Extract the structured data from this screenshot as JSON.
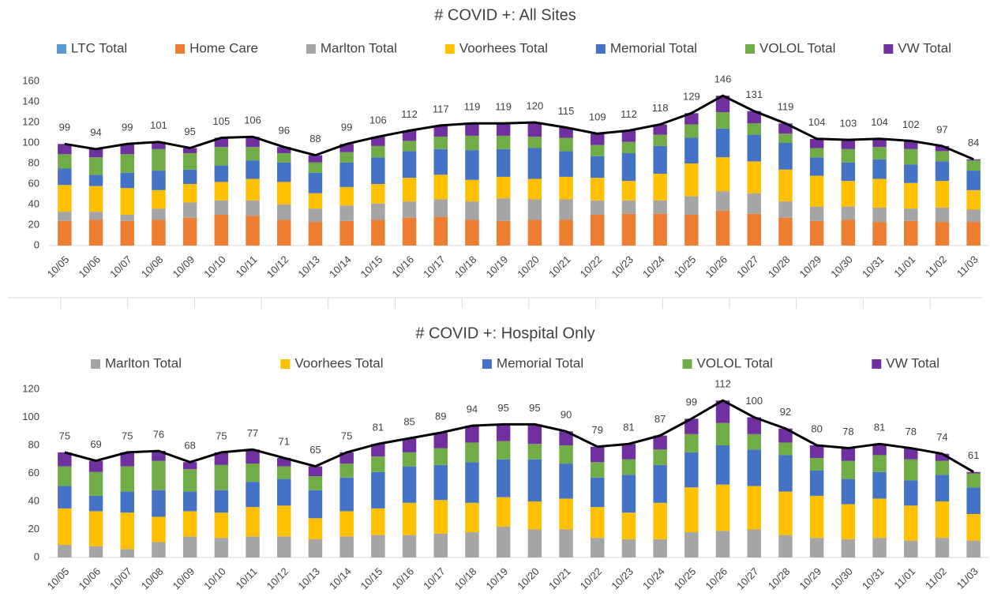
{
  "chart_data": [
    {
      "type": "bar",
      "stacked": true,
      "title": "# COVID +: All Sites",
      "categories": [
        "10/05",
        "10/06",
        "10/07",
        "10/08",
        "10/09",
        "10/10",
        "10/11",
        "10/12",
        "10/13",
        "10/14",
        "10/15",
        "10/16",
        "10/17",
        "10/18",
        "10/19",
        "10/20",
        "10/21",
        "10/22",
        "10/23",
        "10/24",
        "10/25",
        "10/26",
        "10/27",
        "10/28",
        "10/29",
        "10/30",
        "10/31",
        "11/01",
        "11/02",
        "11/03"
      ],
      "series": [
        {
          "name": "LTC Total",
          "color": "#5b9bd5",
          "values": [
            0,
            0,
            0,
            0,
            0,
            0,
            0,
            0,
            0,
            0,
            0,
            0,
            0,
            0,
            0,
            0,
            0,
            0,
            0,
            0,
            0,
            0,
            0,
            0,
            0,
            0,
            0,
            0,
            0,
            0
          ]
        },
        {
          "name": "Home Care",
          "color": "#ed7d31",
          "values": [
            24,
            25,
            24,
            25,
            27,
            30,
            29,
            25,
            23,
            24,
            25,
            27,
            28,
            25,
            24,
            25,
            25,
            30,
            31,
            31,
            30,
            34,
            31,
            27,
            24,
            25,
            23,
            24,
            23,
            23
          ]
        },
        {
          "name": "Marlton Total",
          "color": "#a5a5a5",
          "values": [
            9,
            8,
            6,
            11,
            15,
            14,
            15,
            15,
            13,
            15,
            16,
            16,
            17,
            18,
            22,
            20,
            20,
            14,
            13,
            13,
            18,
            19,
            20,
            16,
            14,
            13,
            14,
            12,
            14,
            12
          ]
        },
        {
          "name": "Voorhees Total",
          "color": "#ffc000",
          "values": [
            26,
            25,
            26,
            18,
            18,
            18,
            21,
            22,
            15,
            18,
            19,
            23,
            24,
            21,
            21,
            20,
            22,
            22,
            19,
            26,
            32,
            33,
            31,
            31,
            30,
            25,
            28,
            25,
            26,
            19
          ]
        },
        {
          "name": "Memorial Total",
          "color": "#4472c4",
          "values": [
            16,
            11,
            15,
            19,
            14,
            16,
            18,
            19,
            20,
            24,
            26,
            26,
            25,
            29,
            27,
            30,
            25,
            21,
            27,
            27,
            25,
            28,
            26,
            26,
            18,
            18,
            19,
            18,
            19,
            19
          ]
        },
        {
          "name": "VOLOL Total",
          "color": "#70ad47",
          "values": [
            14,
            17,
            18,
            21,
            16,
            18,
            13,
            9,
            10,
            10,
            11,
            10,
            12,
            14,
            13,
            11,
            13,
            11,
            11,
            11,
            13,
            16,
            11,
            9,
            9,
            13,
            12,
            15,
            10,
            10
          ]
        },
        {
          "name": "VW Total",
          "color": "#7030a0",
          "values": [
            10,
            8,
            10,
            7,
            5,
            9,
            10,
            6,
            7,
            8,
            9,
            10,
            11,
            12,
            12,
            14,
            10,
            11,
            11,
            10,
            11,
            16,
            12,
            10,
            9,
            9,
            8,
            8,
            5,
            1
          ]
        }
      ],
      "totals": [
        99,
        94,
        99,
        101,
        95,
        105,
        106,
        96,
        88,
        99,
        106,
        112,
        117,
        119,
        119,
        120,
        115,
        109,
        112,
        118,
        129,
        146,
        131,
        119,
        104,
        103,
        104,
        102,
        97,
        84
      ],
      "line_color": "#000000",
      "ylim": [
        0,
        160
      ],
      "yticks": [
        0,
        20,
        40,
        60,
        80,
        100,
        120,
        140,
        160
      ]
    },
    {
      "type": "bar",
      "stacked": true,
      "title": "# COVID +: Hospital Only",
      "categories": [
        "10/05",
        "10/06",
        "10/07",
        "10/08",
        "10/09",
        "10/10",
        "10/11",
        "10/12",
        "10/13",
        "10/14",
        "10/15",
        "10/16",
        "10/17",
        "10/18",
        "10/19",
        "10/20",
        "10/21",
        "10/22",
        "10/23",
        "10/24",
        "10/25",
        "10/26",
        "10/27",
        "10/28",
        "10/29",
        "10/30",
        "10/31",
        "11/01",
        "11/02",
        "11/03"
      ],
      "series": [
        {
          "name": "Marlton Total",
          "color": "#a5a5a5",
          "values": [
            9,
            8,
            6,
            11,
            15,
            14,
            15,
            15,
            13,
            15,
            16,
            16,
            17,
            18,
            22,
            20,
            20,
            14,
            13,
            13,
            18,
            19,
            20,
            16,
            14,
            13,
            14,
            12,
            14,
            12
          ]
        },
        {
          "name": "Voorhees Total",
          "color": "#ffc000",
          "values": [
            26,
            25,
            26,
            18,
            18,
            18,
            21,
            22,
            15,
            18,
            19,
            23,
            24,
            21,
            21,
            20,
            22,
            22,
            19,
            26,
            32,
            33,
            31,
            31,
            30,
            25,
            28,
            25,
            26,
            19
          ]
        },
        {
          "name": "Memorial Total",
          "color": "#4472c4",
          "values": [
            16,
            11,
            15,
            19,
            14,
            16,
            18,
            19,
            20,
            24,
            26,
            26,
            25,
            29,
            27,
            30,
            25,
            21,
            27,
            27,
            25,
            28,
            26,
            26,
            18,
            18,
            19,
            18,
            19,
            19
          ]
        },
        {
          "name": "VOLOL Total",
          "color": "#70ad47",
          "values": [
            14,
            17,
            18,
            21,
            16,
            18,
            13,
            9,
            10,
            10,
            11,
            10,
            12,
            14,
            13,
            11,
            13,
            11,
            11,
            11,
            13,
            16,
            11,
            9,
            9,
            13,
            12,
            15,
            10,
            10
          ]
        },
        {
          "name": "VW Total",
          "color": "#7030a0",
          "values": [
            10,
            8,
            10,
            7,
            5,
            9,
            10,
            6,
            7,
            8,
            9,
            10,
            11,
            12,
            12,
            14,
            10,
            11,
            11,
            10,
            11,
            16,
            12,
            10,
            9,
            9,
            8,
            8,
            5,
            1
          ]
        }
      ],
      "totals": [
        75,
        69,
        75,
        76,
        68,
        75,
        77,
        71,
        65,
        75,
        81,
        85,
        89,
        94,
        95,
        95,
        90,
        79,
        81,
        87,
        99,
        112,
        100,
        92,
        80,
        78,
        81,
        78,
        74,
        61
      ],
      "line_color": "#000000",
      "ylim": [
        0,
        120
      ],
      "yticks": [
        0,
        20,
        40,
        60,
        80,
        100,
        120
      ]
    }
  ]
}
